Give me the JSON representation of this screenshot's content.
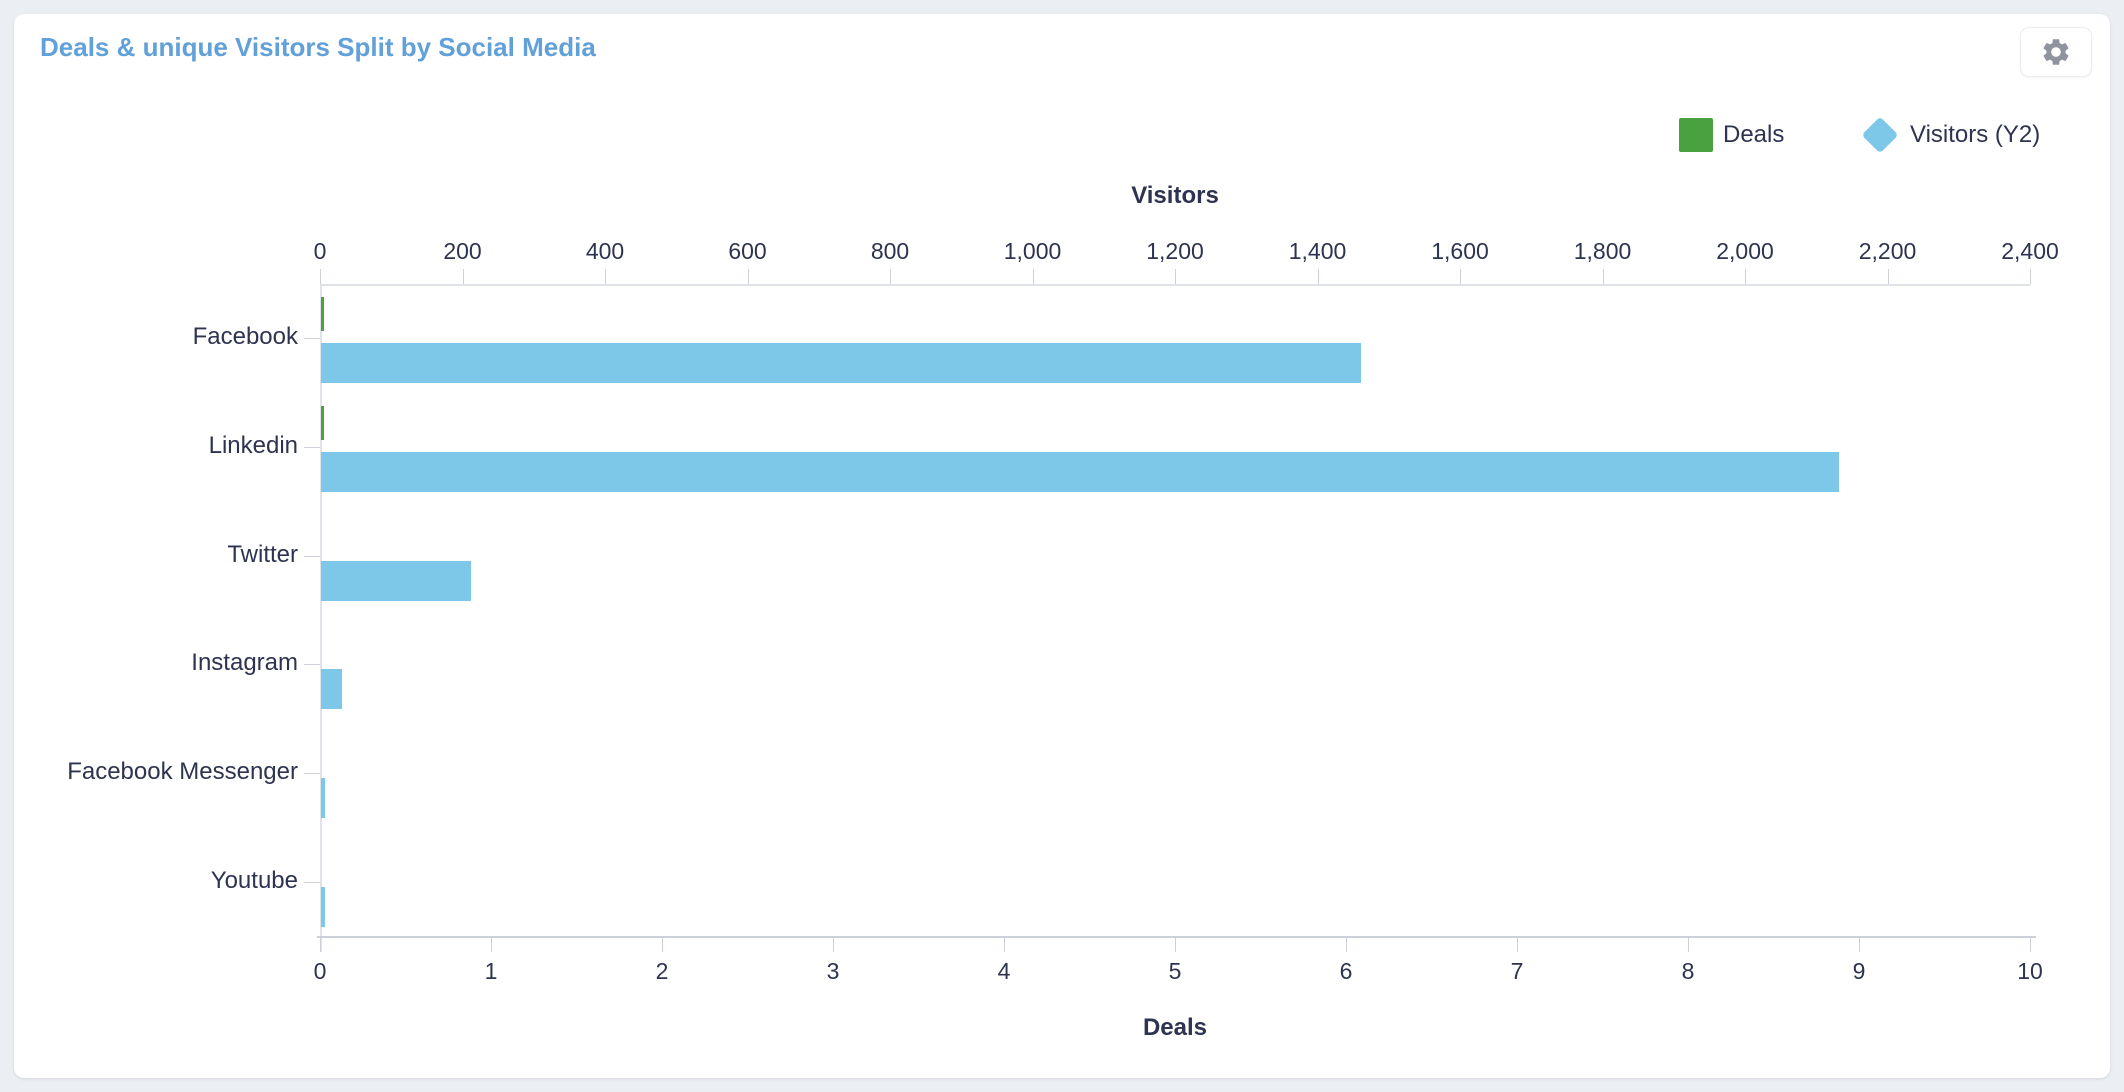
{
  "window": {
    "background": "#ebeef2",
    "card_background": "#ffffff"
  },
  "header": {
    "settings_button": {
      "icon": "gear-icon"
    }
  },
  "legend": {
    "position": "top-right",
    "items": [
      {
        "label": "Deals",
        "marker": "square",
        "color": "#4aa13f"
      },
      {
        "label": "Visitors (Y2)",
        "marker": "diamond",
        "color": "#7dc7e8"
      }
    ]
  },
  "chart_data": {
    "type": "bar",
    "orientation": "horizontal",
    "title": "Deals & unique Visitors Split by Social Media",
    "title_color": "#61a0d9",
    "categories": [
      "Facebook",
      "Linkedin",
      "Twitter",
      "Instagram",
      "Facebook Messenger",
      "Youtube"
    ],
    "series": [
      {
        "name": "Deals",
        "axis": "bottom",
        "color": "#4aa13f",
        "values": [
          0.02,
          0.02,
          0,
          0,
          0,
          0
        ]
      },
      {
        "name": "Visitors (Y2)",
        "axis": "top",
        "color": "#7dc7e8",
        "values": [
          1460,
          2130,
          210,
          30,
          6,
          5
        ]
      }
    ],
    "top_axis": {
      "title": "Visitors",
      "min": 0,
      "max": 2400,
      "step": 200,
      "tick_labels": [
        "0",
        "200",
        "400",
        "600",
        "800",
        "1,000",
        "1,200",
        "1,400",
        "1,600",
        "1,800",
        "2,000",
        "2,200",
        "2,400"
      ]
    },
    "bottom_axis": {
      "title": "Deals",
      "min": 0,
      "max": 10,
      "step": 1,
      "tick_labels": [
        "0",
        "1",
        "2",
        "3",
        "4",
        "5",
        "6",
        "7",
        "8",
        "9",
        "10"
      ]
    },
    "grid": false,
    "legend_position": "top-right"
  }
}
